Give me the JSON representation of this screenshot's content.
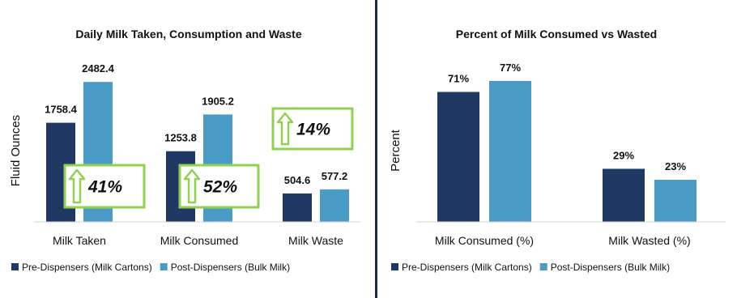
{
  "colors": {
    "pre": "#1f3864",
    "post": "#4a9cc7",
    "annotation_border": "#92d050",
    "annotation_arrow": "#92d050",
    "divider": "#1f2a44"
  },
  "chart_data": [
    {
      "type": "bar",
      "title": "Daily Milk Taken, Consumption and Waste",
      "xlabel": "",
      "ylabel": "Fluid Ounces",
      "categories": [
        "Milk Taken",
        "Milk Consumed",
        "Milk Waste"
      ],
      "series": [
        {
          "name": "Pre-Dispensers (Milk Cartons)",
          "values": [
            1758.4,
            1253.8,
            504.6
          ],
          "labels": [
            "1758.4",
            "1253.8",
            "504.6"
          ]
        },
        {
          "name": "Post-Dispensers (Bulk Milk)",
          "values": [
            2482.4,
            1905.2,
            577.2
          ],
          "labels": [
            "2482.4",
            "1905.2",
            "577.2"
          ]
        }
      ],
      "ylim": [
        0,
        2600
      ],
      "grid": false,
      "legend": "bottom",
      "annotations": [
        {
          "category": "Milk Taken",
          "icon": "up-arrow-icon",
          "text": "41%"
        },
        {
          "category": "Milk Consumed",
          "icon": "up-arrow-icon",
          "text": "52%"
        },
        {
          "category": "Milk Waste",
          "icon": "up-arrow-icon",
          "text": "14%"
        }
      ]
    },
    {
      "type": "bar",
      "title": "Percent of Milk Consumed vs Wasted",
      "xlabel": "",
      "ylabel": "Percent",
      "categories": [
        "Milk Consumed (%)",
        "Milk Wasted (%)"
      ],
      "series": [
        {
          "name": "Pre-Dispensers (Milk Cartons)",
          "values": [
            71,
            29
          ],
          "labels": [
            "71%",
            "29%"
          ]
        },
        {
          "name": "Post-Dispensers (Bulk Milk)",
          "values": [
            77,
            23
          ],
          "labels": [
            "77%",
            "23%"
          ]
        }
      ],
      "ylim": [
        0,
        100
      ],
      "grid": false,
      "legend": "bottom"
    }
  ]
}
